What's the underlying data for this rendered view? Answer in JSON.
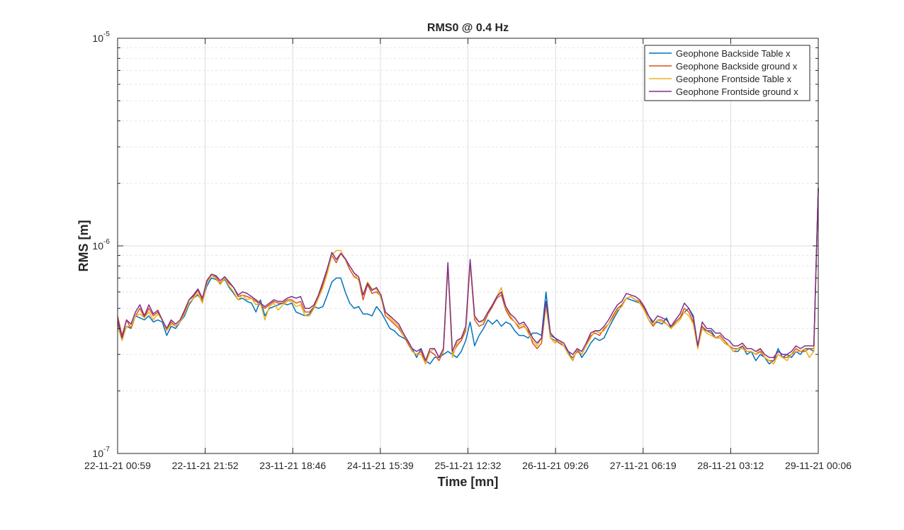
{
  "chart_data": {
    "type": "line",
    "title": "RMS0 @ 0.4 Hz",
    "xlabel": "Time [mn]",
    "ylabel": "RMS [m]",
    "y_scale": "log",
    "ylim": [
      1e-07,
      1e-05
    ],
    "grid": true,
    "minor_grid": true,
    "legend_position": "top-right",
    "x_tick_labels": [
      "22-11-21 00:59",
      "22-11-21 21:52",
      "23-11-21 18:46",
      "24-11-21 15:39",
      "25-11-21 12:32",
      "26-11-21 09:26",
      "27-11-21 06:19",
      "28-11-21 03:12",
      "29-11-21 00:06"
    ],
    "y_ticks": [
      {
        "base": "10",
        "exp": "-7"
      },
      {
        "base": "10",
        "exp": "-6"
      },
      {
        "base": "10",
        "exp": "-5"
      }
    ],
    "series": [
      {
        "name": "Geophone Backside Table x",
        "color": "#0072BD",
        "values": [
          4.3e-07,
          3.6e-07,
          4.1e-07,
          4e-07,
          4.6e-07,
          4.5e-07,
          4.4e-07,
          4.6e-07,
          4.3e-07,
          4.4e-07,
          4.3e-07,
          3.7e-07,
          4.1e-07,
          4e-07,
          4.3e-07,
          4.6e-07,
          5.2e-07,
          5.6e-07,
          5.8e-07,
          5.4e-07,
          6.4e-07,
          7e-07,
          6.9e-07,
          6.6e-07,
          6.9e-07,
          6.3e-07,
          5.9e-07,
          5.5e-07,
          5.6e-07,
          5.4e-07,
          5.3e-07,
          4.8e-07,
          5.5e-07,
          4.6e-07,
          5e-07,
          5.1e-07,
          5.2e-07,
          5.3e-07,
          5.2e-07,
          5.3e-07,
          4.8e-07,
          4.7e-07,
          4.6e-07,
          4.7e-07,
          5.1e-07,
          5e-07,
          5.1e-07,
          5.8e-07,
          6.7e-07,
          7e-07,
          7e-07,
          6e-07,
          5.3e-07,
          5e-07,
          5.1e-07,
          4.7e-07,
          4.7e-07,
          4.6e-07,
          5.1e-07,
          4.8e-07,
          4.4e-07,
          4e-07,
          3.9e-07,
          3.7e-07,
          3.6e-07,
          3.5e-07,
          3.2e-07,
          2.9e-07,
          3.2e-07,
          2.8e-07,
          2.7e-07,
          2.9e-07,
          2.9e-07,
          3e-07,
          3.1e-07,
          3e-07,
          2.9e-07,
          3.1e-07,
          3.5e-07,
          4.3e-07,
          3.3e-07,
          3.7e-07,
          4e-07,
          4.4e-07,
          4.2e-07,
          4.4e-07,
          4.1e-07,
          4.3e-07,
          4.2e-07,
          3.9e-07,
          3.7e-07,
          3.7e-07,
          3.6e-07,
          3.8e-07,
          3.8e-07,
          3.7e-07,
          6e-07,
          3.7e-07,
          3.6e-07,
          3.4e-07,
          3.3e-07,
          3.1e-07,
          2.8e-07,
          3.2e-07,
          2.9e-07,
          3.1e-07,
          3.4e-07,
          3.6e-07,
          3.5e-07,
          3.6e-07,
          4e-07,
          4.4e-07,
          4.8e-07,
          5.2e-07,
          5.6e-07,
          5.5e-07,
          5.4e-07,
          5.3e-07,
          5.1e-07,
          4.6e-07,
          4.2e-07,
          4.3e-07,
          4.2e-07,
          4.5e-07,
          4e-07,
          4.3e-07,
          4.5e-07,
          4.8e-07,
          5e-07,
          4.6e-07,
          3.3e-07,
          4e-07,
          3.9e-07,
          3.9e-07,
          3.6e-07,
          3.6e-07,
          3.4e-07,
          3.3e-07,
          3.1e-07,
          3.1e-07,
          3.3e-07,
          3e-07,
          3.1e-07,
          2.8e-07,
          3e-07,
          2.9e-07,
          2.7e-07,
          2.8e-07,
          3.2e-07,
          2.9e-07,
          3e-07,
          2.9e-07,
          3.1e-07,
          3e-07,
          3.2e-07,
          3.2e-07,
          3.1e-07,
          1.9e-06
        ]
      },
      {
        "name": "Geophone Backside ground x",
        "color": "#D95319",
        "values": [
          4.6e-07,
          3.7e-07,
          4.4e-07,
          4e-07,
          4.6e-07,
          5e-07,
          4.5e-07,
          5e-07,
          4.6e-07,
          4.8e-07,
          4.4e-07,
          3.9e-07,
          4.3e-07,
          4.1e-07,
          4.3e-07,
          4.8e-07,
          5.5e-07,
          5.7e-07,
          6.1e-07,
          5.5e-07,
          6.7e-07,
          7.2e-07,
          7.1e-07,
          6.6e-07,
          7e-07,
          6.6e-07,
          6.3e-07,
          5.7e-07,
          5.8e-07,
          5.7e-07,
          5.6e-07,
          5.4e-07,
          5.2e-07,
          5e-07,
          5.2e-07,
          5.4e-07,
          5.3e-07,
          5.3e-07,
          5.5e-07,
          5.5e-07,
          5.3e-07,
          5.4e-07,
          4.8e-07,
          4.8e-07,
          5.1e-07,
          5.7e-07,
          6.5e-07,
          7.6e-07,
          9e-07,
          8.3e-07,
          9.2e-07,
          8.6e-07,
          7.7e-07,
          7.1e-07,
          6.9e-07,
          5.5e-07,
          6.5e-07,
          5.9e-07,
          6e-07,
          5.7e-07,
          4.6e-07,
          4.4e-07,
          4.2e-07,
          4e-07,
          3.7e-07,
          3.4e-07,
          3.1e-07,
          3e-07,
          3.1e-07,
          2.7e-07,
          3.1e-07,
          3e-07,
          2.8e-07,
          3.1e-07,
          8e-07,
          3e-07,
          3.3e-07,
          3.5e-07,
          3.9e-07,
          8.3e-07,
          4.4e-07,
          4.1e-07,
          4.2e-07,
          4.7e-07,
          5.1e-07,
          5.6e-07,
          5.8e-07,
          4.9e-07,
          4.5e-07,
          4.3e-07,
          4e-07,
          4.1e-07,
          3.9e-07,
          3.4e-07,
          3.2e-07,
          3.4e-07,
          5.2e-07,
          3.6e-07,
          3.5e-07,
          3.4e-07,
          3.3e-07,
          3e-07,
          2.9e-07,
          3.1e-07,
          3e-07,
          3.3e-07,
          3.7e-07,
          3.8e-07,
          3.7e-07,
          4e-07,
          4.2e-07,
          4.6e-07,
          5e-07,
          5.2e-07,
          5.6e-07,
          5.7e-07,
          5.5e-07,
          5.4e-07,
          5e-07,
          4.4e-07,
          4.1e-07,
          4.4e-07,
          4.4e-07,
          4.2e-07,
          4e-07,
          4.3e-07,
          4.5e-07,
          5e-07,
          4.8e-07,
          4.3e-07,
          3.2e-07,
          4.1e-07,
          3.9e-07,
          3.8e-07,
          3.6e-07,
          3.7e-07,
          3.5e-07,
          3.3e-07,
          3.2e-07,
          3.2e-07,
          3.3e-07,
          3.1e-07,
          3.1e-07,
          3e-07,
          3.1e-07,
          2.9e-07,
          2.8e-07,
          2.8e-07,
          3e-07,
          2.9e-07,
          2.9e-07,
          3e-07,
          3.2e-07,
          3.1e-07,
          3.1e-07,
          3.2e-07,
          3.2e-07,
          1.9e-06
        ]
      },
      {
        "name": "Geophone Frontside Table x",
        "color": "#EDB120",
        "values": [
          4.1e-07,
          3.5e-07,
          4.1e-07,
          4.1e-07,
          4.6e-07,
          4.7e-07,
          4.5e-07,
          4.8e-07,
          4.4e-07,
          4.7e-07,
          4.4e-07,
          3.9e-07,
          4.2e-07,
          4.1e-07,
          4.3e-07,
          4.7e-07,
          5.3e-07,
          5.6e-07,
          5.9e-07,
          5.3e-07,
          6.6e-07,
          7.2e-07,
          7e-07,
          6.5e-07,
          7e-07,
          6.4e-07,
          6e-07,
          5.5e-07,
          5.8e-07,
          5.5e-07,
          5.6e-07,
          5.2e-07,
          5.3e-07,
          4.4e-07,
          5.1e-07,
          5.3e-07,
          4.9e-07,
          5.2e-07,
          5.4e-07,
          5.4e-07,
          5.1e-07,
          5.2e-07,
          4.6e-07,
          4.6e-07,
          5e-07,
          5.6e-07,
          6.3e-07,
          7.4e-07,
          9e-07,
          9.5e-07,
          9.5e-07,
          8.6e-07,
          8e-07,
          7.4e-07,
          6.8e-07,
          5.8e-07,
          6.7e-07,
          6.2e-07,
          6.2e-07,
          5.6e-07,
          4.8e-07,
          4.5e-07,
          4.3e-07,
          4.1e-07,
          3.7e-07,
          3.5e-07,
          3.1e-07,
          3e-07,
          3e-07,
          2.7e-07,
          3.1e-07,
          3.2e-07,
          2.9e-07,
          3.1e-07,
          8e-07,
          2.9e-07,
          3.4e-07,
          3.6e-07,
          4e-07,
          8.2e-07,
          4.5e-07,
          4.3e-07,
          4.3e-07,
          4.8e-07,
          5.2e-07,
          5.7e-07,
          6.3e-07,
          5e-07,
          4.6e-07,
          4.3e-07,
          4.1e-07,
          4.2e-07,
          3.8e-07,
          3.5e-07,
          3.3e-07,
          3.6e-07,
          5.1e-07,
          3.6e-07,
          3.4e-07,
          3.5e-07,
          3.3e-07,
          3e-07,
          2.8e-07,
          3.2e-07,
          3e-07,
          3.3e-07,
          3.6e-07,
          3.9e-07,
          3.8e-07,
          3.9e-07,
          4.2e-07,
          4.5e-07,
          4.9e-07,
          5.1e-07,
          5.6e-07,
          5.7e-07,
          5.5e-07,
          5.3e-07,
          4.9e-07,
          4.4e-07,
          4.2e-07,
          4.4e-07,
          4.3e-07,
          4.2e-07,
          4e-07,
          4.2e-07,
          4.4e-07,
          4.8e-07,
          4.6e-07,
          4.2e-07,
          3.2e-07,
          4e-07,
          3.8e-07,
          3.7e-07,
          3.6e-07,
          3.6e-07,
          3.4e-07,
          3.3e-07,
          3.1e-07,
          3.2e-07,
          3.2e-07,
          3.1e-07,
          3.1e-07,
          3e-07,
          3.2e-07,
          2.9e-07,
          2.8e-07,
          2.7e-07,
          3e-07,
          2.9e-07,
          2.8e-07,
          3e-07,
          3.1e-07,
          3.1e-07,
          3.2e-07,
          2.9e-07,
          3.1e-07,
          1.9e-06
        ]
      },
      {
        "name": "Geophone Frontside ground x",
        "color": "#7E2F8E",
        "values": [
          4.4e-07,
          3.6e-07,
          4.4e-07,
          4.2e-07,
          4.8e-07,
          5.2e-07,
          4.6e-07,
          5.2e-07,
          4.7e-07,
          4.9e-07,
          4.4e-07,
          4e-07,
          4.4e-07,
          4.2e-07,
          4.4e-07,
          4.9e-07,
          5.5e-07,
          5.8e-07,
          6.2e-07,
          5.6e-07,
          6.8e-07,
          7.3e-07,
          7.2e-07,
          6.8e-07,
          7.1e-07,
          6.7e-07,
          6.3e-07,
          5.8e-07,
          6e-07,
          5.9e-07,
          5.7e-07,
          5.5e-07,
          5.3e-07,
          5.1e-07,
          5.3e-07,
          5.5e-07,
          5.4e-07,
          5.4e-07,
          5.6e-07,
          5.7e-07,
          5.6e-07,
          5.7e-07,
          5e-07,
          5e-07,
          5.2e-07,
          5.8e-07,
          6.7e-07,
          7.8e-07,
          9.3e-07,
          8.6e-07,
          9.2e-07,
          8.7e-07,
          8e-07,
          7.4e-07,
          7.1e-07,
          5.8e-07,
          6.6e-07,
          6.1e-07,
          6.3e-07,
          5.8e-07,
          4.8e-07,
          4.6e-07,
          4.4e-07,
          4.2e-07,
          3.8e-07,
          3.5e-07,
          3.2e-07,
          3.1e-07,
          3.2e-07,
          2.8e-07,
          3.2e-07,
          3.2e-07,
          2.9e-07,
          3.2e-07,
          8.3e-07,
          3.1e-07,
          3.5e-07,
          3.6e-07,
          4.1e-07,
          8.6e-07,
          4.6e-07,
          4.3e-07,
          4.4e-07,
          4.8e-07,
          5.2e-07,
          5.7e-07,
          6e-07,
          5.1e-07,
          4.7e-07,
          4.5e-07,
          4.2e-07,
          4.3e-07,
          4e-07,
          3.6e-07,
          3.4e-07,
          3.6e-07,
          5.4e-07,
          3.8e-07,
          3.6e-07,
          3.5e-07,
          3.4e-07,
          3.1e-07,
          3e-07,
          3.2e-07,
          3.1e-07,
          3.4e-07,
          3.8e-07,
          3.9e-07,
          3.9e-07,
          4.1e-07,
          4.4e-07,
          4.8e-07,
          5.2e-07,
          5.4e-07,
          5.9e-07,
          5.8e-07,
          5.7e-07,
          5.5e-07,
          5.1e-07,
          4.6e-07,
          4.3e-07,
          4.6e-07,
          4.5e-07,
          4.4e-07,
          4.1e-07,
          4.4e-07,
          4.7e-07,
          5.3e-07,
          5e-07,
          4.5e-07,
          3.3e-07,
          4.3e-07,
          4e-07,
          4e-07,
          3.8e-07,
          3.8e-07,
          3.6e-07,
          3.5e-07,
          3.3e-07,
          3.3e-07,
          3.4e-07,
          3.2e-07,
          3.2e-07,
          3.1e-07,
          3.2e-07,
          3e-07,
          2.9e-07,
          2.9e-07,
          3.1e-07,
          3e-07,
          3e-07,
          3.1e-07,
          3.3e-07,
          3.2e-07,
          3.3e-07,
          3.3e-07,
          3.3e-07,
          1.9e-06
        ]
      }
    ]
  }
}
